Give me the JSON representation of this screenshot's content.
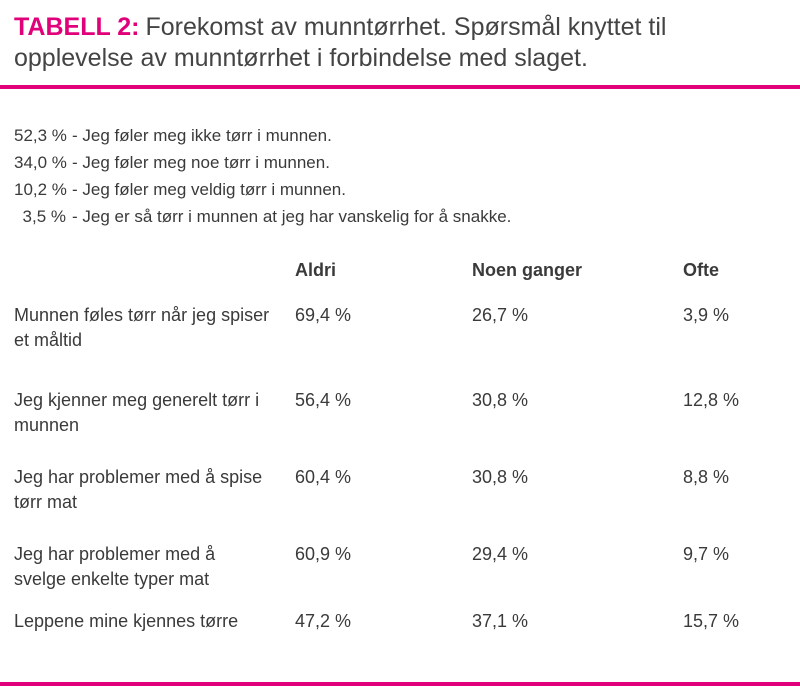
{
  "header": {
    "label": "TABELL 2:",
    "title": "Forekomst av munntørrhet. Spørsmål knyttet til opplevelse av munntørrhet i forbindelse med slaget."
  },
  "summary": [
    {
      "percent": "52,3 %",
      "text": "- Jeg føler meg ikke tørr i munnen."
    },
    {
      "percent": "34,0 %",
      "text": "- Jeg føler meg noe tørr i munnen."
    },
    {
      "percent": "10,2 %",
      "text": "- Jeg føler meg veldig tørr i munnen."
    },
    {
      "percent": "3,5 %",
      "text": "- Jeg er så tørr i munnen at jeg har vanskelig for å snakke."
    }
  ],
  "table": {
    "columns": [
      "Aldri",
      "Noen ganger",
      "Ofte"
    ],
    "rows": [
      [
        "Munnen føles tørr når jeg spiser et måltid",
        "69,4 %",
        "26,7 %",
        "3,9 %"
      ],
      [
        "Jeg kjenner meg generelt tørr i munnen",
        "56,4 %",
        "30,8 %",
        "12,8 %"
      ],
      [
        "Jeg har problemer med å spise tørr mat",
        "60,4 %",
        "30,8 %",
        "8,8 %"
      ],
      [
        "Jeg har problemer med å svelge enkelte typer mat",
        "60,9 %",
        "29,4 %",
        "9,7 %"
      ],
      [
        "Leppene mine kjennes tørre",
        "47,2 %",
        "37,1 %",
        "15,7 %"
      ]
    ]
  }
}
